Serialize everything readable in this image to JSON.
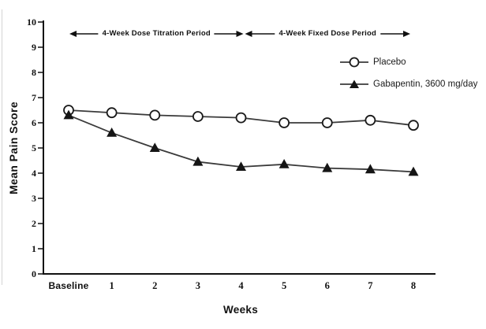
{
  "figure": {
    "background": "#ffffff",
    "line_color": "#3a3a3a",
    "axis_color": "#111111",
    "marker_fill": "#151515",
    "text_color": "#1a1a1a"
  },
  "chart_data": {
    "type": "line",
    "title": "",
    "xlabel": "Weeks",
    "ylabel": "Mean Pain Score",
    "ylim": [
      0,
      10
    ],
    "y_ticks": [
      "0",
      "1",
      "2",
      "3",
      "4",
      "5",
      "6",
      "7",
      "8",
      "9",
      "10"
    ],
    "categories": [
      "Baseline",
      "1",
      "2",
      "3",
      "4",
      "5",
      "6",
      "7",
      "8"
    ],
    "series": [
      {
        "name": "Placebo",
        "marker": "open-circle",
        "values": [
          6.5,
          6.4,
          6.3,
          6.25,
          6.2,
          6.0,
          6.0,
          6.1,
          5.9
        ]
      },
      {
        "name": "Gabapentin, 3600 mg/day",
        "marker": "filled-triangle",
        "values": [
          6.3,
          5.6,
          5.0,
          4.45,
          4.25,
          4.35,
          4.2,
          4.15,
          4.05
        ]
      }
    ],
    "annotations": [
      {
        "label": "4-Week Dose Titration Period",
        "x_start": "Baseline",
        "x_end": "4",
        "arrow": "double-headed"
      },
      {
        "label": "4-Week Fixed Dose Period",
        "x_start": "4",
        "x_end": "8",
        "arrow": "double-headed"
      }
    ],
    "legend_position": "top-right",
    "grid": false
  }
}
